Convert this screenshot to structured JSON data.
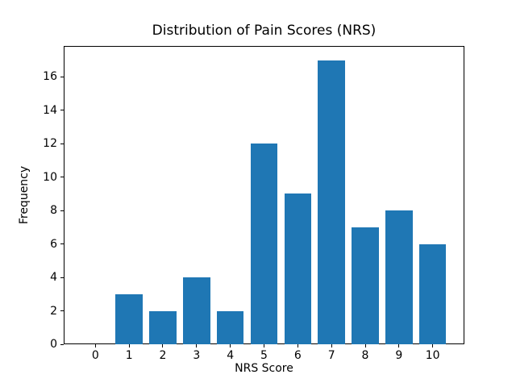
{
  "figure": {
    "title": "Distribution of Pain Scores (NRS)"
  },
  "chart_data": {
    "type": "bar",
    "title": "Distribution of Pain Scores (NRS)",
    "xlabel": "NRS Score",
    "ylabel": "Frequency",
    "categories": [
      "0",
      "1",
      "2",
      "3",
      "4",
      "5",
      "6",
      "7",
      "8",
      "9",
      "10"
    ],
    "values": [
      0,
      3,
      2,
      4,
      2,
      12,
      9,
      17,
      7,
      8,
      6
    ],
    "bar_color": "#1f77b4",
    "axis_color": "#000000",
    "background_color": "#ffffff",
    "xlim": [
      -0.94,
      10.94
    ],
    "ylim": [
      0,
      17.85
    ],
    "yticks": [
      0,
      2,
      4,
      6,
      8,
      10,
      12,
      14,
      16
    ],
    "bar_width_units": 0.8,
    "grid": false,
    "legend_position": "none"
  }
}
